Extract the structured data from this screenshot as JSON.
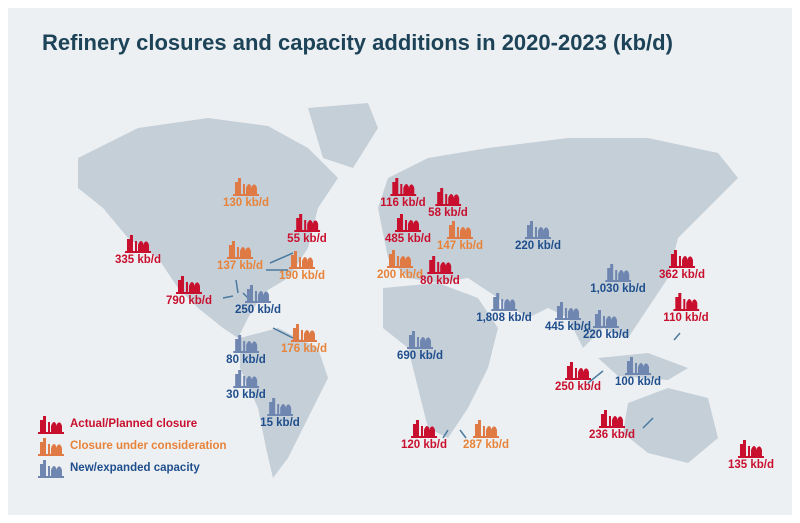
{
  "title": "Refinery closures and capacity additions in 2020-2023 (kb/d)",
  "colors": {
    "closure": "#c8102e",
    "consideration": "#e8833a",
    "new": "#1f4e8c"
  },
  "legend": {
    "closure": "Actual/Planned closure",
    "consideration": "Closure under consideration",
    "new": "New/expanded capacity"
  },
  "markers": [
    {
      "type": "consideration",
      "value": "130 kb/d"
    },
    {
      "type": "closure",
      "value": "335 kb/d"
    },
    {
      "type": "closure",
      "value": "55 kb/d"
    },
    {
      "type": "consideration",
      "value": "137 kb/d"
    },
    {
      "type": "consideration",
      "value": "190 kb/d"
    },
    {
      "type": "closure",
      "value": "790 kb/d"
    },
    {
      "type": "new",
      "value": "250 kb/d"
    },
    {
      "type": "consideration",
      "value": "176 kb/d"
    },
    {
      "type": "new",
      "value": "80 kb/d"
    },
    {
      "type": "new",
      "value": "30 kb/d"
    },
    {
      "type": "new",
      "value": "15 kb/d"
    },
    {
      "type": "closure",
      "value": "116 kb/d"
    },
    {
      "type": "closure",
      "value": "58 kb/d"
    },
    {
      "type": "closure",
      "value": "485 kb/d"
    },
    {
      "type": "consideration",
      "value": "147 kb/d"
    },
    {
      "type": "consideration",
      "value": "200 kb/d"
    },
    {
      "type": "closure",
      "value": "80 kb/d"
    },
    {
      "type": "new",
      "value": "220 kb/d"
    },
    {
      "type": "new",
      "value": "1,808 kb/d"
    },
    {
      "type": "new",
      "value": "445 kb/d"
    },
    {
      "type": "new",
      "value": "690 kb/d"
    },
    {
      "type": "new",
      "value": "1,030 kb/d"
    },
    {
      "type": "closure",
      "value": "362 kb/d"
    },
    {
      "type": "closure",
      "value": "110 kb/d"
    },
    {
      "type": "new",
      "value": "220 kb/d"
    },
    {
      "type": "closure",
      "value": "250 kb/d"
    },
    {
      "type": "new",
      "value": "100 kb/d"
    },
    {
      "type": "closure",
      "value": "236 kb/d"
    },
    {
      "type": "closure",
      "value": "135 kb/d"
    },
    {
      "type": "closure",
      "value": "120 kb/d"
    },
    {
      "type": "consideration",
      "value": "287 kb/d"
    }
  ]
}
